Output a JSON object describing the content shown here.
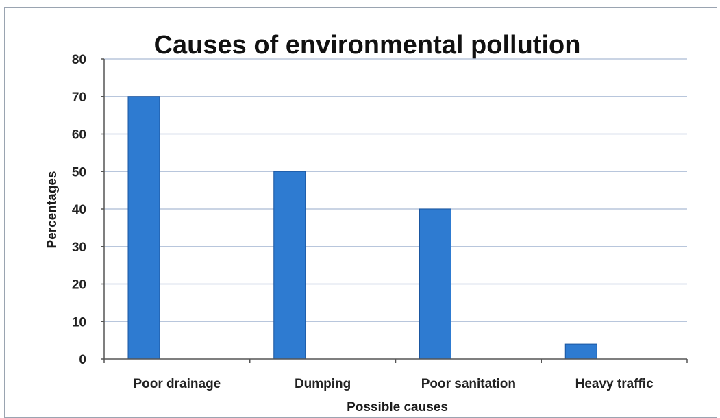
{
  "chart_data": {
    "type": "bar",
    "title": "Causes of environmental pollution",
    "xlabel": "Possible causes",
    "ylabel": "Percentages",
    "categories": [
      "Poor drainage",
      "Dumping",
      "Poor sanitation",
      "Heavy traffic"
    ],
    "values": [
      70,
      50,
      40,
      4
    ],
    "ylim": [
      0,
      80
    ],
    "yticks": [
      0,
      10,
      20,
      30,
      40,
      50,
      60,
      70,
      80
    ],
    "grid": true,
    "legend": "none",
    "colors": {
      "bar": "#2e7bd1",
      "bar_edge": "#1a56a0",
      "grid": "#b8c6dc",
      "axis": "#555555"
    }
  }
}
